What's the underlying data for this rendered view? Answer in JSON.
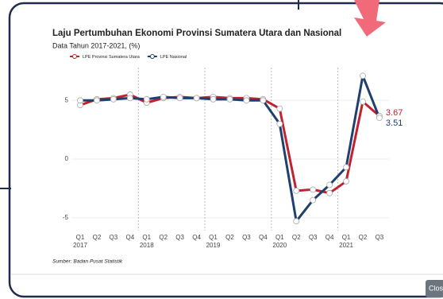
{
  "close_button": "Close",
  "chart_data": {
    "type": "line",
    "title": "Laju Pertumbuhan Ekonomi Provinsi Sumatera Utara dan Nasional",
    "subtitle": "Data Tahun 2017-2021, (%)",
    "source": "Sumber: Badan Pusat Statistik",
    "categories": [
      "Q1",
      "Q2",
      "Q3",
      "Q4",
      "Q1",
      "Q2",
      "Q3",
      "Q4",
      "Q1",
      "Q2",
      "Q3",
      "Q4",
      "Q1",
      "Q2",
      "Q3",
      "Q4",
      "Q1",
      "Q2",
      "Q3"
    ],
    "x_groups": [
      "2017",
      "2018",
      "2019",
      "2020",
      "2021"
    ],
    "series": [
      {
        "name": "LPE Provinsi Sumatera Utara",
        "color": "#c0222f",
        "values": [
          4.6,
          5.1,
          5.2,
          5.5,
          4.8,
          5.2,
          5.3,
          5.2,
          5.3,
          5.2,
          5.2,
          5.1,
          4.3,
          -2.7,
          -2.6,
          -2.9,
          -1.9,
          4.9,
          3.67
        ]
      },
      {
        "name": "LPE Nasional",
        "color": "#1f3f6e",
        "values": [
          5.0,
          5.0,
          5.1,
          5.2,
          5.1,
          5.3,
          5.2,
          5.2,
          5.1,
          5.1,
          5.0,
          5.0,
          3.0,
          -5.3,
          -3.5,
          -2.2,
          -0.7,
          7.1,
          3.51
        ]
      }
    ],
    "ylim": [
      -6.1,
      7.8
    ],
    "yticks": [
      -5,
      0,
      5
    ],
    "grid": true,
    "legend": "top-left"
  }
}
